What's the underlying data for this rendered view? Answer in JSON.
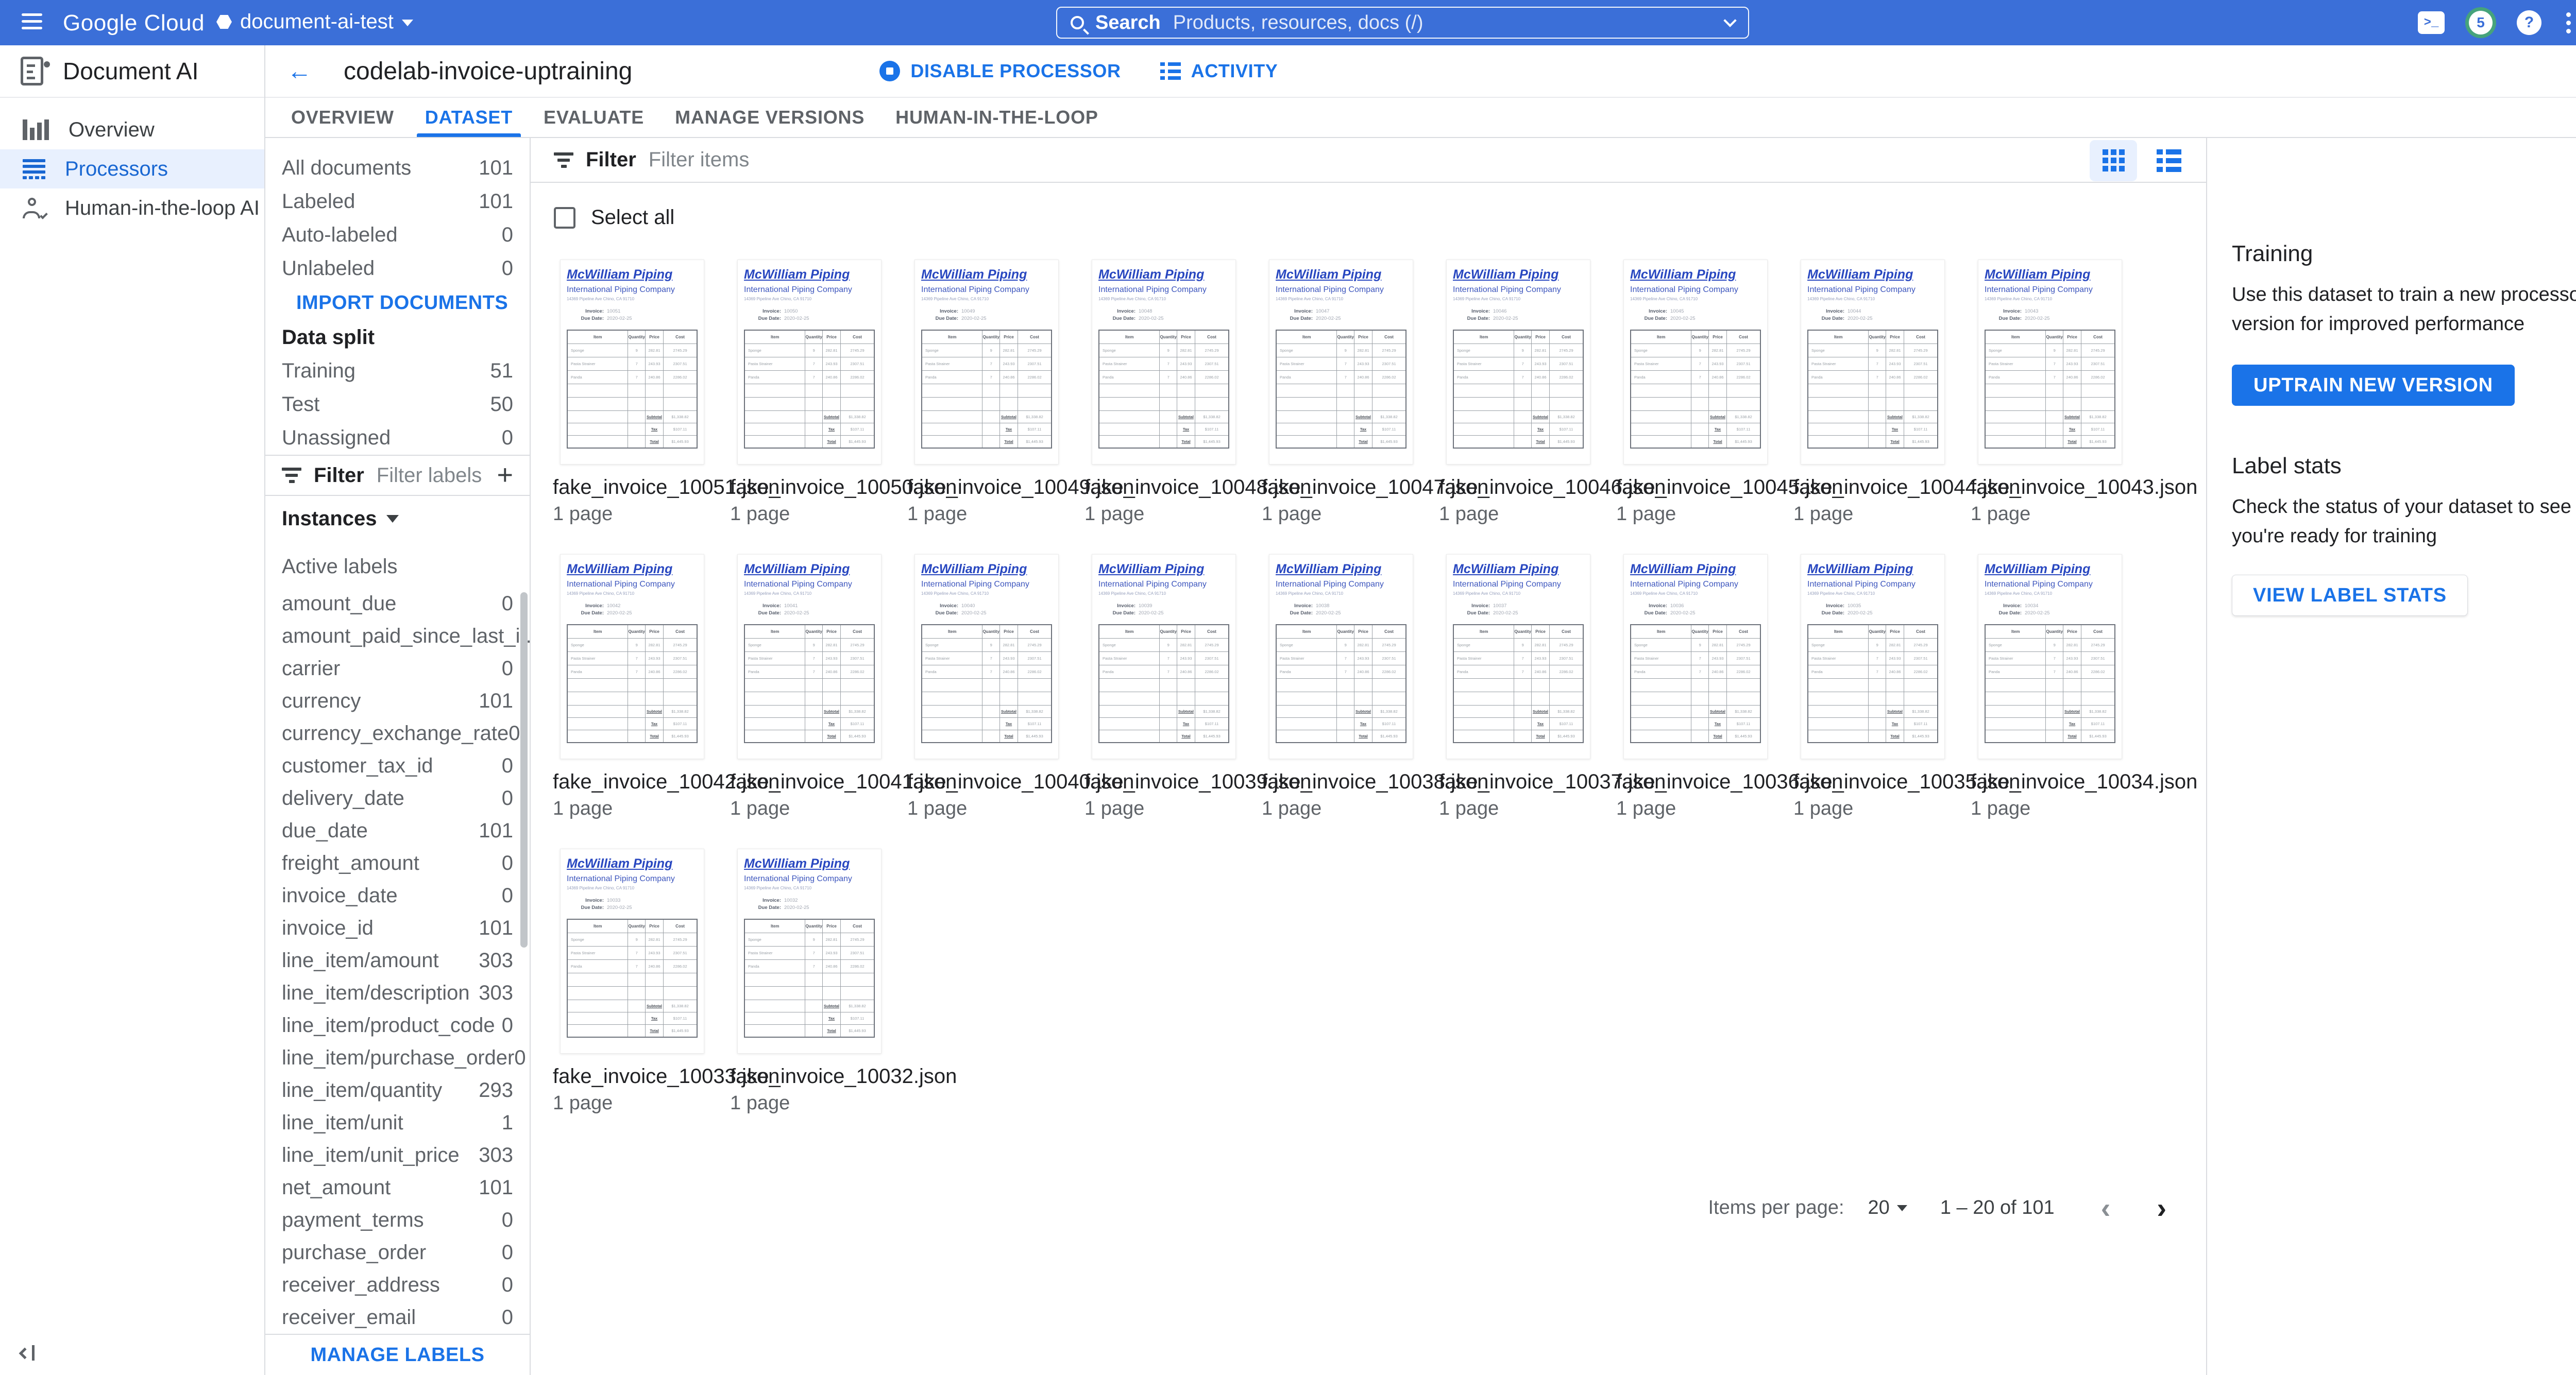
{
  "topbar": {
    "product": "Google Cloud",
    "project": "document-ai-test",
    "search_label": "Search",
    "search_placeholder": "Products, resources, docs (/)",
    "notifications_count": "5",
    "help_glyph": "?",
    "bar_color": "#3b6fd8",
    "accent_color": "#1a73e8"
  },
  "leftnav": {
    "title": "Document AI",
    "items": [
      "Overview",
      "Processors",
      "Human-in-the-loop AI"
    ],
    "active_item": "Processors"
  },
  "header": {
    "title": "codelab-invoice-uptraining",
    "disable_processor": "DISABLE PROCESSOR",
    "activity": "ACTIVITY"
  },
  "tabs": [
    "OVERVIEW",
    "DATASET",
    "EVALUATE",
    "MANAGE VERSIONS",
    "HUMAN-IN-THE-LOOP"
  ],
  "active_tab": "DATASET",
  "dataset_panel": {
    "doc_counts": [
      {
        "label": "All documents",
        "value": "101"
      },
      {
        "label": "Labeled",
        "value": "101"
      },
      {
        "label": "Auto-labeled",
        "value": "0"
      },
      {
        "label": "Unlabeled",
        "value": "0"
      }
    ],
    "import_button": "IMPORT DOCUMENTS",
    "data_split_title": "Data split",
    "split_counts": [
      {
        "label": "Training",
        "value": "51"
      },
      {
        "label": "Test",
        "value": "50"
      },
      {
        "label": "Unassigned",
        "value": "0"
      }
    ],
    "filter_label": "Filter",
    "filter_placeholder": "Filter labels",
    "instances_label": "Instances",
    "active_labels_title": "Active labels",
    "labels": [
      [
        "amount_due",
        "0"
      ],
      [
        "amount_paid_since_last_i...",
        "0"
      ],
      [
        "carrier",
        "0"
      ],
      [
        "currency",
        "101"
      ],
      [
        "currency_exchange_rate",
        "0"
      ],
      [
        "customer_tax_id",
        "0"
      ],
      [
        "delivery_date",
        "0"
      ],
      [
        "due_date",
        "101"
      ],
      [
        "freight_amount",
        "0"
      ],
      [
        "invoice_date",
        "0"
      ],
      [
        "invoice_id",
        "101"
      ],
      [
        "line_item/amount",
        "303"
      ],
      [
        "line_item/description",
        "303"
      ],
      [
        "line_item/product_code",
        "0"
      ],
      [
        "line_item/purchase_order",
        "0"
      ],
      [
        "line_item/quantity",
        "293"
      ],
      [
        "line_item/unit",
        "1"
      ],
      [
        "line_item/unit_price",
        "303"
      ],
      [
        "net_amount",
        "101"
      ],
      [
        "payment_terms",
        "0"
      ],
      [
        "purchase_order",
        "0"
      ],
      [
        "receiver_address",
        "0"
      ],
      [
        "receiver_email",
        "0"
      ]
    ],
    "manage_labels_button": "MANAGE LABELS"
  },
  "main": {
    "filter_label": "Filter",
    "filter_placeholder": "Filter items",
    "select_all": "Select all",
    "thumbnail": {
      "company": "McWilliam Piping",
      "subtitle": "International Piping Company",
      "address": "14369 Pipeline Ave Chino, CA 91710",
      "invoice_label": "Invoice:",
      "due_date_label": "Due Date:",
      "due_date_value": "2020-02-25",
      "table_headers": [
        "Item",
        "Quantity",
        "Price",
        "Cost"
      ],
      "table_rows": [
        [
          "Sponge",
          "9",
          "282.81",
          "2745.29"
        ],
        [
          "Pasta Strainer",
          "7",
          "243.93",
          "2307.51"
        ],
        [
          "Panda",
          "7",
          "240.86",
          "2286.02"
        ]
      ],
      "empty_rows": 2,
      "summary_rows": [
        [
          "Subtotal",
          "$1,338.82"
        ],
        [
          "Tax",
          "$107.11"
        ],
        [
          "Total",
          "$1,445.93"
        ]
      ]
    },
    "cards": [
      {
        "file": "fake_invoice_10051.json",
        "pages": "1 page",
        "invoice_no": "10051"
      },
      {
        "file": "fake_invoice_10050.json",
        "pages": "1 page",
        "invoice_no": "10050"
      },
      {
        "file": "fake_invoice_10049.json",
        "pages": "1 page",
        "invoice_no": "10049"
      },
      {
        "file": "fake_invoice_10048.json",
        "pages": "1 page",
        "invoice_no": "10048"
      },
      {
        "file": "fake_invoice_10047.json",
        "pages": "1 page",
        "invoice_no": "10047"
      },
      {
        "file": "fake_invoice_10046.json",
        "pages": "1 page",
        "invoice_no": "10046"
      },
      {
        "file": "fake_invoice_10045.json",
        "pages": "1 page",
        "invoice_no": "10045"
      },
      {
        "file": "fake_invoice_10044.json",
        "pages": "1 page",
        "invoice_no": "10044"
      },
      {
        "file": "fake_invoice_10043.json",
        "pages": "1 page",
        "invoice_no": "10043"
      },
      {
        "file": "fake_invoice_10042.json",
        "pages": "1 page",
        "invoice_no": "10042"
      },
      {
        "file": "fake_invoice_10041.json",
        "pages": "1 page",
        "invoice_no": "10041"
      },
      {
        "file": "fake_invoice_10040.json",
        "pages": "1 page",
        "invoice_no": "10040"
      },
      {
        "file": "fake_invoice_10039.json",
        "pages": "1 page",
        "invoice_no": "10039"
      },
      {
        "file": "fake_invoice_10038.json",
        "pages": "1 page",
        "invoice_no": "10038"
      },
      {
        "file": "fake_invoice_10037.json",
        "pages": "1 page",
        "invoice_no": "10037"
      },
      {
        "file": "fake_invoice_10036.json",
        "pages": "1 page",
        "invoice_no": "10036"
      },
      {
        "file": "fake_invoice_10035.json",
        "pages": "1 page",
        "invoice_no": "10035"
      },
      {
        "file": "fake_invoice_10034.json",
        "pages": "1 page",
        "invoice_no": "10034"
      },
      {
        "file": "fake_invoice_10033.json",
        "pages": "1 page",
        "invoice_no": "10033"
      },
      {
        "file": "fake_invoice_10032.json",
        "pages": "1 page",
        "invoice_no": "10032"
      }
    ],
    "pagination": {
      "items_per_page_label": "Items per page:",
      "page_size": "20",
      "range": "1 – 20 of 101"
    }
  },
  "right_panel": {
    "training_title": "Training",
    "training_desc": "Use this dataset to train a new processor version for improved performance",
    "uptrain_button": "UPTRAIN NEW VERSION",
    "label_stats_title": "Label stats",
    "label_stats_desc": "Check the status of your dataset to see if you're ready for training",
    "view_stats_button": "VIEW LABEL STATS"
  }
}
